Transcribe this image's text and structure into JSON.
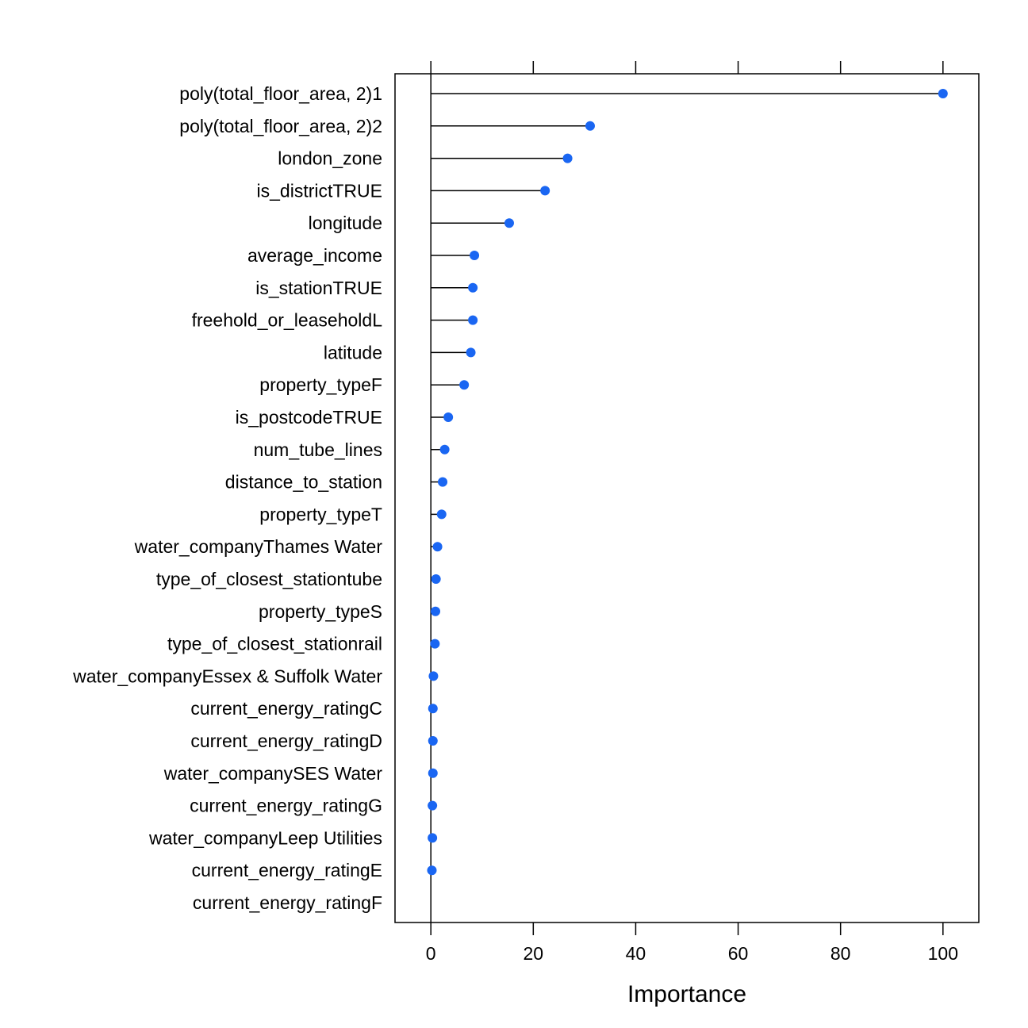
{
  "chart_data": {
    "type": "scatter",
    "style": "lollipop dot plot",
    "title": "",
    "xlabel": "Importance",
    "ylabel": "",
    "xlim": [
      -7,
      107
    ],
    "xticks": [
      0,
      20,
      40,
      60,
      80,
      100
    ],
    "grid": false,
    "point_color": "#1a66f2",
    "line_color": "#000000",
    "categories": [
      "poly(total_floor_area, 2)1",
      "poly(total_floor_area, 2)2",
      "london_zone",
      "is_districtTRUE",
      "longitude",
      "average_income",
      "is_stationTRUE",
      "freehold_or_leaseholdL",
      "latitude",
      "property_typeF",
      "is_postcodeTRUE",
      "num_tube_lines",
      "distance_to_station",
      "property_typeT",
      "water_companyThames Water",
      "type_of_closest_stationtube",
      "property_typeS",
      "type_of_closest_stationrail",
      "water_companyEssex & Suffolk Water",
      "current_energy_ratingC",
      "current_energy_ratingD",
      "water_companySES Water",
      "current_energy_ratingG",
      "water_companyLeep Utilities",
      "current_energy_ratingE",
      "current_energy_ratingF"
    ],
    "values": [
      100,
      31.1,
      26.7,
      22.3,
      15.3,
      8.5,
      8.2,
      8.2,
      7.8,
      6.5,
      3.4,
      2.7,
      2.3,
      2.1,
      1.3,
      1.0,
      0.9,
      0.8,
      0.5,
      0.4,
      0.4,
      0.4,
      0.3,
      0.3,
      0.2,
      null
    ]
  }
}
